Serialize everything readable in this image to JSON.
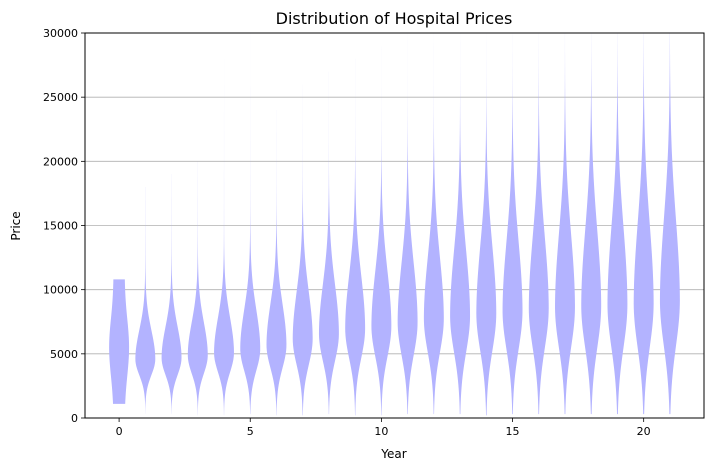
{
  "chart_data": {
    "type": "violin",
    "title": "Distribution of Hospital Prices",
    "xlabel": "Year",
    "ylabel": "Price",
    "xlim": [
      -1.3,
      22.3
    ],
    "ylim": [
      0,
      30000
    ],
    "x_ticks": [
      0,
      5,
      10,
      15,
      20
    ],
    "y_ticks": [
      0,
      5000,
      10000,
      15000,
      20000,
      25000,
      30000
    ],
    "grid": "horizontal",
    "violin_color": "#b3b3ff",
    "violins": [
      {
        "year": 0,
        "min": 1100,
        "max": 10800,
        "mode": 5500,
        "spread": 2500
      },
      {
        "year": 1,
        "min": 300,
        "max": 18000,
        "mode": 4600,
        "spread": 1400
      },
      {
        "year": 2,
        "min": 300,
        "max": 19000,
        "mode": 4700,
        "spread": 1500
      },
      {
        "year": 3,
        "min": 200,
        "max": 20000,
        "mode": 4900,
        "spread": 1600
      },
      {
        "year": 4,
        "min": 200,
        "max": 28000,
        "mode": 5100,
        "spread": 1700
      },
      {
        "year": 5,
        "min": 300,
        "max": 30000,
        "mode": 5400,
        "spread": 1900
      },
      {
        "year": 6,
        "min": 200,
        "max": 24000,
        "mode": 5700,
        "spread": 2000
      },
      {
        "year": 7,
        "min": 200,
        "max": 26000,
        "mode": 6200,
        "spread": 2300
      },
      {
        "year": 8,
        "min": 300,
        "max": 27000,
        "mode": 6600,
        "spread": 2400
      },
      {
        "year": 9,
        "min": 200,
        "max": 28000,
        "mode": 7000,
        "spread": 2600
      },
      {
        "year": 10,
        "min": 200,
        "max": 29000,
        "mode": 7200,
        "spread": 2700
      },
      {
        "year": 11,
        "min": 300,
        "max": 30000,
        "mode": 7500,
        "spread": 2900
      },
      {
        "year": 12,
        "min": 300,
        "max": 30000,
        "mode": 7800,
        "spread": 3000
      },
      {
        "year": 13,
        "min": 300,
        "max": 30000,
        "mode": 8000,
        "spread": 3200
      },
      {
        "year": 14,
        "min": 200,
        "max": 30000,
        "mode": 8200,
        "spread": 3300
      },
      {
        "year": 15,
        "min": 300,
        "max": 30000,
        "mode": 8400,
        "spread": 3400
      },
      {
        "year": 16,
        "min": 300,
        "max": 30000,
        "mode": 8600,
        "spread": 3500
      },
      {
        "year": 17,
        "min": 300,
        "max": 30000,
        "mode": 8700,
        "spread": 3600
      },
      {
        "year": 18,
        "min": 300,
        "max": 30000,
        "mode": 8800,
        "spread": 3700
      },
      {
        "year": 19,
        "min": 300,
        "max": 30000,
        "mode": 8900,
        "spread": 3800
      },
      {
        "year": 20,
        "min": 300,
        "max": 30000,
        "mode": 9000,
        "spread": 3900
      },
      {
        "year": 21,
        "min": 300,
        "max": 30000,
        "mode": 9200,
        "spread": 4000
      }
    ]
  }
}
